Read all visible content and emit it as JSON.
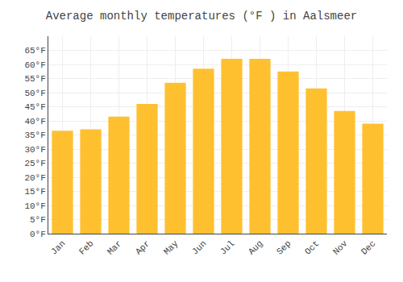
{
  "chart_data": {
    "type": "bar",
    "title": "Average monthly temperatures (°F ) in Aalsmeer",
    "categories": [
      "Jan",
      "Feb",
      "Mar",
      "Apr",
      "May",
      "Jun",
      "Jul",
      "Aug",
      "Sep",
      "Oct",
      "Nov",
      "Dec"
    ],
    "values": [
      36.5,
      37.0,
      41.5,
      46.0,
      53.5,
      58.5,
      62.0,
      62.0,
      57.5,
      51.5,
      43.5,
      39.0
    ],
    "color": "#FFC030",
    "ylim": [
      0,
      70
    ],
    "yticks": [
      {
        "value": 0,
        "label": "0°F"
      },
      {
        "value": 5,
        "label": "5°F"
      },
      {
        "value": 10,
        "label": "10°F"
      },
      {
        "value": 15,
        "label": "15°F"
      },
      {
        "value": 20,
        "label": "20°F"
      },
      {
        "value": 25,
        "label": "25°F"
      },
      {
        "value": 30,
        "label": "30°F"
      },
      {
        "value": 35,
        "label": "35°F"
      },
      {
        "value": 40,
        "label": "40°F"
      },
      {
        "value": 45,
        "label": "45°F"
      },
      {
        "value": 50,
        "label": "50°F"
      },
      {
        "value": 55,
        "label": "55°F"
      },
      {
        "value": 60,
        "label": "60°F"
      },
      {
        "value": 65,
        "label": "65°F"
      }
    ],
    "grid": true
  }
}
